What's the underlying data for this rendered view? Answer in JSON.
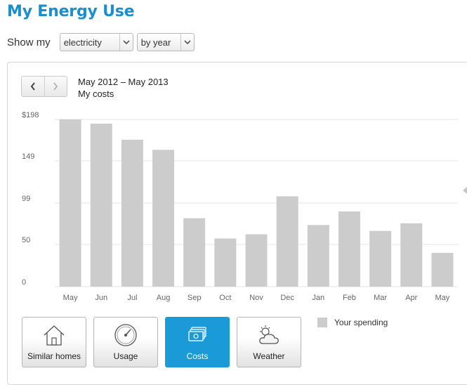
{
  "header": {
    "title": "My Energy Use"
  },
  "filters": {
    "label": "Show my",
    "fuel": {
      "selected": "electricity"
    },
    "period": {
      "selected": "by year"
    }
  },
  "nav": {
    "prev_icon": "chevron-left-icon",
    "next_icon": "chevron-right-icon"
  },
  "range": {
    "dates": "May 2012 – May 2013",
    "metric": "My costs"
  },
  "chart_data": {
    "type": "bar",
    "categories": [
      "May",
      "Jun",
      "Jul",
      "Aug",
      "Sep",
      "Oct",
      "Nov",
      "Dec",
      "Jan",
      "Feb",
      "Mar",
      "Apr",
      "May"
    ],
    "series": [
      {
        "name": "Your spending",
        "values": [
          198,
          193,
          174,
          162,
          81,
          57,
          62,
          107,
          73,
          89,
          66,
          75,
          40
        ]
      }
    ],
    "yticks": [
      "$198",
      "149",
      "99",
      "50",
      "0"
    ],
    "ytick_values": [
      198,
      149,
      99,
      50,
      0
    ],
    "ylim": [
      0,
      198
    ],
    "grid": true,
    "legend": "bottom-right",
    "colors": {
      "bar": "#cccccc",
      "grid": "#e6e6e6"
    }
  },
  "tabs": [
    {
      "label": "Similar homes",
      "icon": "house-icon",
      "active": false
    },
    {
      "label": "Usage",
      "icon": "gauge-icon",
      "active": false
    },
    {
      "label": "Costs",
      "icon": "money-icon",
      "active": true
    },
    {
      "label": "Weather",
      "icon": "weather-icon",
      "active": false
    }
  ],
  "legend": {
    "label": "Your spending"
  },
  "colors": {
    "accent": "#1a8fd0",
    "active_tab": "#1a9bd7"
  }
}
